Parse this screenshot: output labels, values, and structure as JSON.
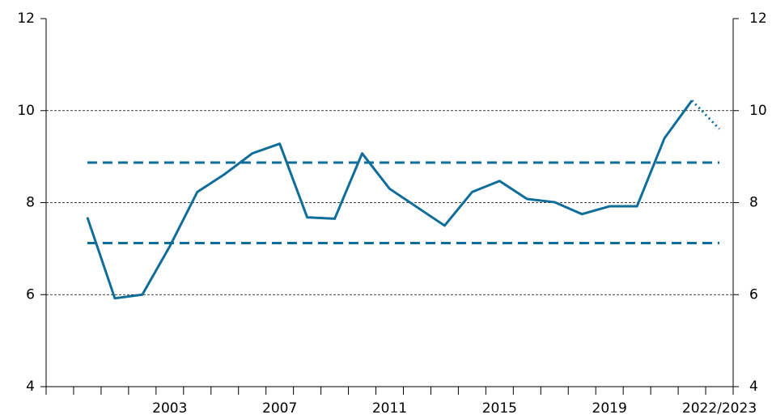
{
  "chart_data": {
    "type": "line",
    "categories": [
      null,
      null,
      null,
      null,
      "2003",
      null,
      null,
      null,
      "2007",
      null,
      null,
      null,
      "2011",
      null,
      null,
      null,
      "2015",
      null,
      null,
      null,
      "2019",
      null,
      null,
      null,
      "2022/2023"
    ],
    "series": [
      {
        "color": "#0e6d99",
        "style": "solid",
        "values": [
          null,
          7.68,
          5.92,
          6.0,
          7.05,
          8.23,
          8.62,
          9.07,
          9.28,
          7.68,
          7.65,
          9.07,
          8.3,
          7.9,
          7.5,
          8.23,
          8.47,
          8.08,
          8.01,
          7.75,
          7.92,
          7.92,
          9.4,
          10.22,
          null
        ]
      },
      {
        "color": "#0e6d99",
        "style": "dotted",
        "values": [
          null,
          null,
          null,
          null,
          null,
          null,
          null,
          null,
          null,
          null,
          null,
          null,
          null,
          null,
          null,
          null,
          null,
          null,
          null,
          null,
          null,
          null,
          null,
          10.22,
          9.6
        ]
      }
    ],
    "hlines": [
      {
        "value": 8.87,
        "color": "#0e6d99",
        "style": "dashed"
      },
      {
        "value": 7.12,
        "color": "#0e6d99",
        "style": "dashed"
      }
    ],
    "ylim": [
      4,
      12
    ],
    "yticks": [
      4,
      6,
      8,
      10,
      12
    ],
    "y2lim": [
      4,
      12
    ],
    "y2ticks": [
      4,
      6,
      8,
      10,
      12
    ],
    "grid": true
  }
}
